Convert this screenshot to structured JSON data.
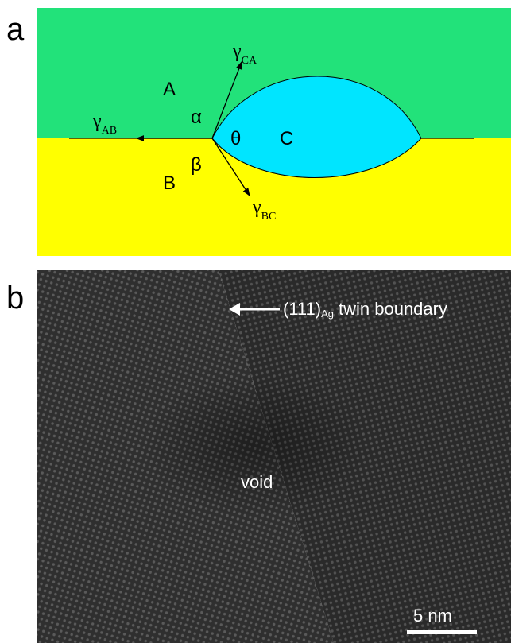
{
  "panel_a": {
    "label": "a",
    "phases": [
      "A",
      "B",
      "C"
    ],
    "angles": [
      "α",
      "β",
      "θ"
    ],
    "tensions": [
      {
        "symbol": "γ",
        "subscript": "CA"
      },
      {
        "symbol": "γ",
        "subscript": "AB"
      },
      {
        "symbol": "γ",
        "subscript": "BC"
      }
    ]
  },
  "panel_b": {
    "label": "b",
    "annotation": {
      "plane": "(111)",
      "subscript": "Ag",
      "text": "twin boundary"
    },
    "void_label": "void",
    "scale_bar": "5 nm"
  }
}
